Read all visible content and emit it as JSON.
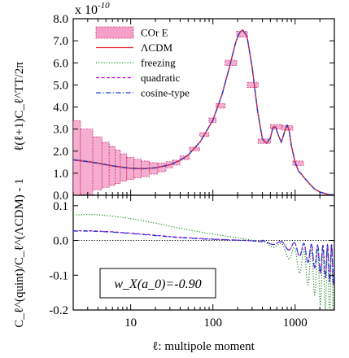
{
  "chart_data": [
    {
      "type": "line",
      "panel": "top",
      "ylabel": "ℓ(ℓ+1)C_ℓ^TT/2π",
      "scale_label": "x 10^-10",
      "xscale": "log",
      "xlim": [
        2,
        3000
      ],
      "ylim": [
        0.0,
        8.0
      ],
      "yticks": [
        0.0,
        1.0,
        2.0,
        3.0,
        4.0,
        5.0,
        6.0,
        7.0,
        8.0
      ],
      "ytick_labels": [
        "0.0",
        "1.0",
        "2.0",
        "3.0",
        "4.0",
        "5.0",
        "6.0",
        "7.0",
        "8.0"
      ],
      "legend_position": "top-left",
      "legend": [
        {
          "key": "core",
          "label": "COr E",
          "style": "filled-box",
          "color": "#f4a0c8"
        },
        {
          "key": "lcdm",
          "label": "ΛCDM",
          "style": "solid",
          "color": "#e8283c"
        },
        {
          "key": "freezing",
          "label": "freezing",
          "style": "dotted",
          "color": "#1e8c1e"
        },
        {
          "key": "quadratic",
          "label": "quadratic",
          "style": "dashed",
          "color": "#b400d2"
        },
        {
          "key": "cosine",
          "label": "cosine-type",
          "style": "dashdot",
          "color": "#1e3ccd"
        }
      ],
      "series": [
        {
          "name": "ΛCDM",
          "x": [
            2,
            3,
            4,
            5,
            6,
            8,
            10,
            14,
            20,
            30,
            40,
            50,
            70,
            100,
            130,
            160,
            190,
            210,
            230,
            260,
            300,
            350,
            400,
            450,
            500,
            540,
            580,
            620,
            680,
            740,
            800,
            850,
            900,
            1000,
            1100,
            1200,
            1300,
            1500,
            1700,
            2000,
            2500,
            3000
          ],
          "y": [
            1.6,
            1.52,
            1.45,
            1.38,
            1.33,
            1.26,
            1.22,
            1.2,
            1.24,
            1.38,
            1.58,
            1.82,
            2.42,
            3.4,
            4.6,
            5.85,
            6.95,
            7.35,
            7.5,
            7.2,
            5.8,
            3.8,
            2.55,
            2.35,
            2.6,
            3.1,
            3.1,
            2.75,
            2.4,
            2.85,
            3.2,
            2.9,
            2.25,
            1.5,
            1.1,
            0.95,
            0.78,
            0.52,
            0.3,
            0.15,
            0.04,
            0.01
          ]
        }
      ],
      "error_boxes": {
        "name": "COr E",
        "x": [
          2,
          3,
          4,
          5,
          6,
          7,
          8,
          10,
          12,
          15,
          19,
          24,
          30,
          35,
          45,
          60,
          80,
          100,
          120,
          165,
          230,
          300,
          420,
          600,
          800,
          1100
        ],
        "center": [
          1.6,
          1.52,
          1.45,
          1.38,
          1.33,
          1.29,
          1.26,
          1.22,
          1.21,
          1.2,
          1.22,
          1.26,
          1.38,
          1.48,
          1.7,
          2.1,
          2.75,
          3.4,
          4.05,
          6.0,
          7.3,
          5.0,
          2.45,
          3.1,
          3.05,
          1.45
        ],
        "half_width": [
          1.78,
          1.48,
          1.2,
          1.02,
          0.88,
          0.76,
          0.62,
          0.5,
          0.42,
          0.35,
          0.26,
          0.19,
          0.14,
          0.11,
          0.08,
          0.08,
          0.09,
          0.1,
          0.1,
          0.12,
          0.13,
          0.12,
          0.1,
          0.1,
          0.1,
          0.1
        ]
      }
    },
    {
      "type": "line",
      "panel": "bottom",
      "ylabel": "C_ℓ^(quint)/C_ℓ^(ΛCDM) - 1",
      "xlabel": "ℓ: multipole moment",
      "xscale": "log",
      "xlim": [
        2,
        3000
      ],
      "ylim": [
        -0.2,
        0.13
      ],
      "yticks": [
        -0.2,
        -0.1,
        0.0,
        0.1
      ],
      "ytick_labels": [
        "-0.2",
        "-0.1",
        "0.0",
        "0.1"
      ],
      "xticks": [
        10,
        100,
        1000
      ],
      "xtick_labels": [
        "10",
        "100",
        "1000"
      ],
      "annotation": "w_X(a_0)=-0.90",
      "series": [
        {
          "name": "freezing",
          "x": [
            2,
            3,
            4,
            6,
            10,
            20,
            40,
            80,
            150,
            250,
            400,
            600,
            800,
            1000,
            1300,
            1700,
            2200,
            3000
          ],
          "y": [
            0.073,
            0.075,
            0.074,
            0.07,
            0.063,
            0.05,
            0.035,
            0.022,
            0.012,
            0.004,
            -0.005,
            -0.015,
            -0.03,
            -0.05,
            -0.07,
            -0.09,
            -0.11,
            -0.13
          ],
          "osc_start": 400,
          "osc_amp": [
            0.005,
            0.12
          ]
        },
        {
          "name": "quadratic",
          "x": [
            2,
            3,
            4,
            6,
            10,
            20,
            40,
            80,
            150,
            250,
            400,
            600,
            800,
            1000,
            1300,
            1700,
            2200,
            3000
          ],
          "y": [
            0.028,
            0.028,
            0.027,
            0.025,
            0.021,
            0.015,
            0.009,
            0.005,
            0.002,
            0.0,
            -0.003,
            -0.008,
            -0.015,
            -0.022,
            -0.032,
            -0.045,
            -0.058,
            -0.07
          ],
          "osc_start": 400,
          "osc_amp": [
            0.004,
            0.06
          ]
        },
        {
          "name": "cosine-type",
          "x": [
            2,
            3,
            4,
            6,
            10,
            20,
            40,
            80,
            150,
            250,
            400,
            600,
            800,
            1000,
            1300,
            1700,
            2200,
            3000
          ],
          "y": [
            0.027,
            0.027,
            0.026,
            0.024,
            0.02,
            0.014,
            0.008,
            0.004,
            0.002,
            0.0,
            -0.003,
            -0.008,
            -0.015,
            -0.022,
            -0.032,
            -0.045,
            -0.058,
            -0.07
          ],
          "osc_start": 400,
          "osc_amp": [
            0.004,
            0.06
          ]
        }
      ]
    }
  ]
}
